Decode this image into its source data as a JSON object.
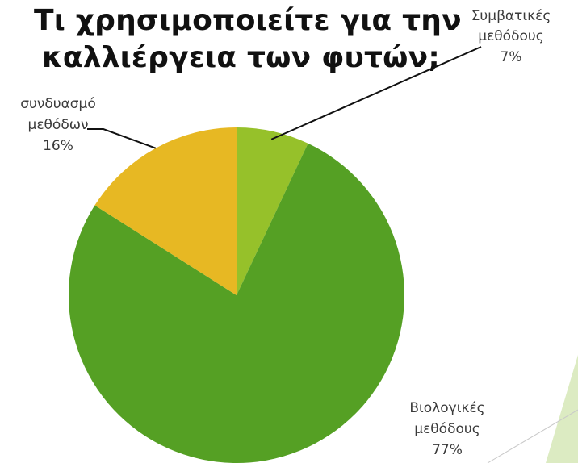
{
  "colors": {
    "light_green": "#96c12a",
    "green": "#55a024",
    "yellow": "#e7b823",
    "leader": "#111111",
    "deco": "#dcebc2"
  },
  "chart_data": {
    "type": "pie",
    "title_lines": [
      "Τι χρησιμοποιείτε για την",
      "καλλιέργεια των φυτών;"
    ],
    "slices": [
      {
        "label_lines": [
          "Συμβατικές",
          "μεθόδους"
        ],
        "value": 7,
        "value_label": "7%",
        "color": "#96c12a"
      },
      {
        "label_lines": [
          "Βιολογικές",
          "μεθόδους"
        ],
        "value": 77,
        "value_label": "77%",
        "color": "#55a024"
      },
      {
        "label_lines": [
          "συνδυασμό",
          "μεθόδων"
        ],
        "value": 16,
        "value_label": "16%",
        "color": "#e7b823"
      }
    ],
    "start_angle_deg": 0,
    "direction": "clockwise",
    "legend": "none"
  }
}
